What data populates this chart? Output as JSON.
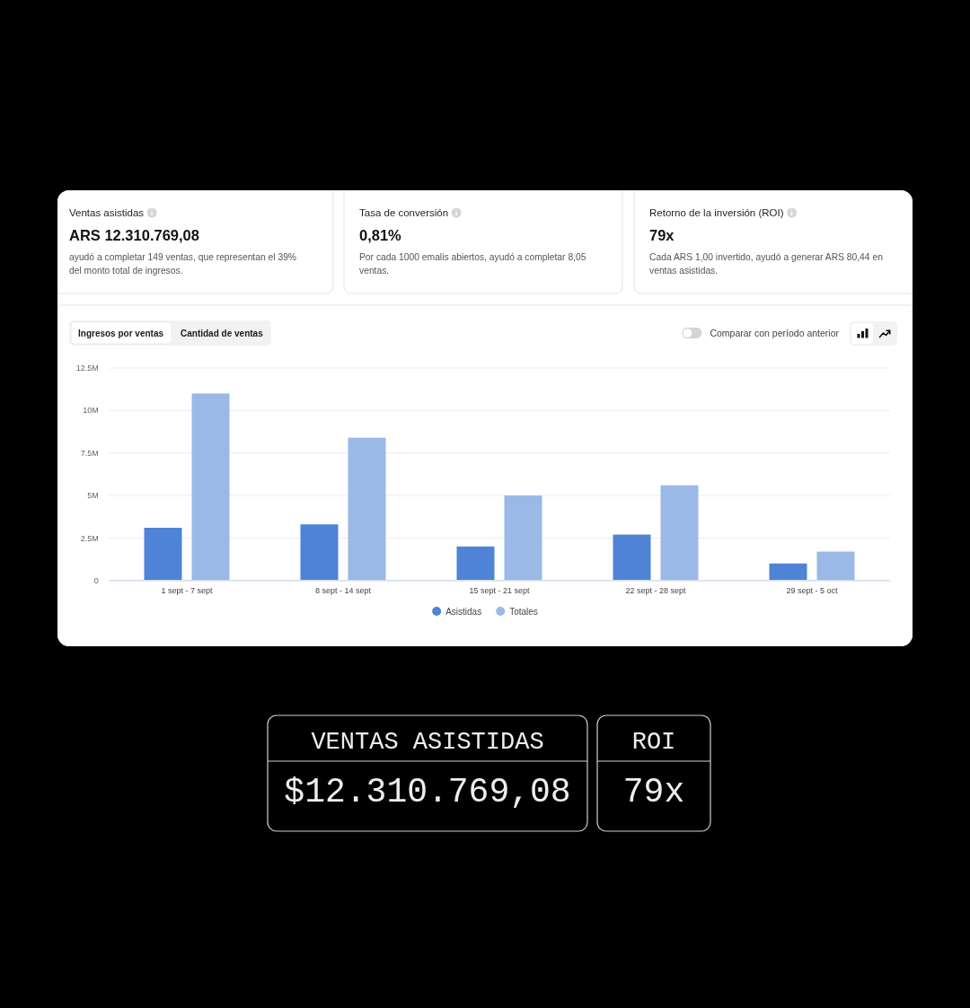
{
  "chart_data": [
    {
      "type": "other",
      "title": "Ventas asistidas",
      "subtitle": "ARS 12.310.769,08",
      "annotations": [
        "ayudó a completar 149 ventas, que representan el 39% del monto total de ingresos."
      ]
    },
    {
      "type": "other",
      "title": "Tasa de conversión",
      "subtitle": "0,81%",
      "annotations": [
        "Por cada 1000 emalis abiertos, ayudó a completar 8,05 ventas."
      ]
    },
    {
      "type": "other",
      "title": "Retorno de la inversión (ROI)",
      "subtitle": "79x",
      "annotations": [
        "Cada ARS 1,00 invertido, ayudó a generar ARS 80,44 en ventas asistidas."
      ]
    },
    {
      "type": "bar",
      "categories": [
        "1 sept - 7 sept",
        "8 sept - 14 sept",
        "15 sept - 21 sept",
        "22 sept - 28 sept",
        "29 sept - 5 oct"
      ],
      "series": [
        {
          "name": "Asistidas",
          "color": "#4f83d6",
          "values": [
            3100000,
            3300000,
            2000000,
            2700000,
            1000000
          ]
        },
        {
          "name": "Totales",
          "color": "#9bb9e6",
          "values": [
            11000000,
            8400000,
            5000000,
            5600000,
            1700000
          ]
        }
      ],
      "ylim": [
        0,
        12500000
      ],
      "yticks": [
        0,
        {
          "value": 2500000,
          "label": "2.5M"
        },
        {
          "value": 5000000,
          "label": "5M"
        },
        {
          "value": 7500000,
          "label": "7.5M"
        },
        {
          "value": 10000000,
          "label": "10M"
        },
        {
          "value": 12500000,
          "label": "12.5M"
        }
      ],
      "grid": "y",
      "legend": "bottom",
      "annotations": [
        "Ingresos por ventas",
        "Cantidad de ventas",
        "Comparar con período anterior"
      ]
    },
    {
      "type": "other",
      "title": "VENTAS ASISTIDAS",
      "subtitle": "$12.310.769,08"
    },
    {
      "type": "other",
      "title": "ROI",
      "subtitle": "79x"
    }
  ]
}
